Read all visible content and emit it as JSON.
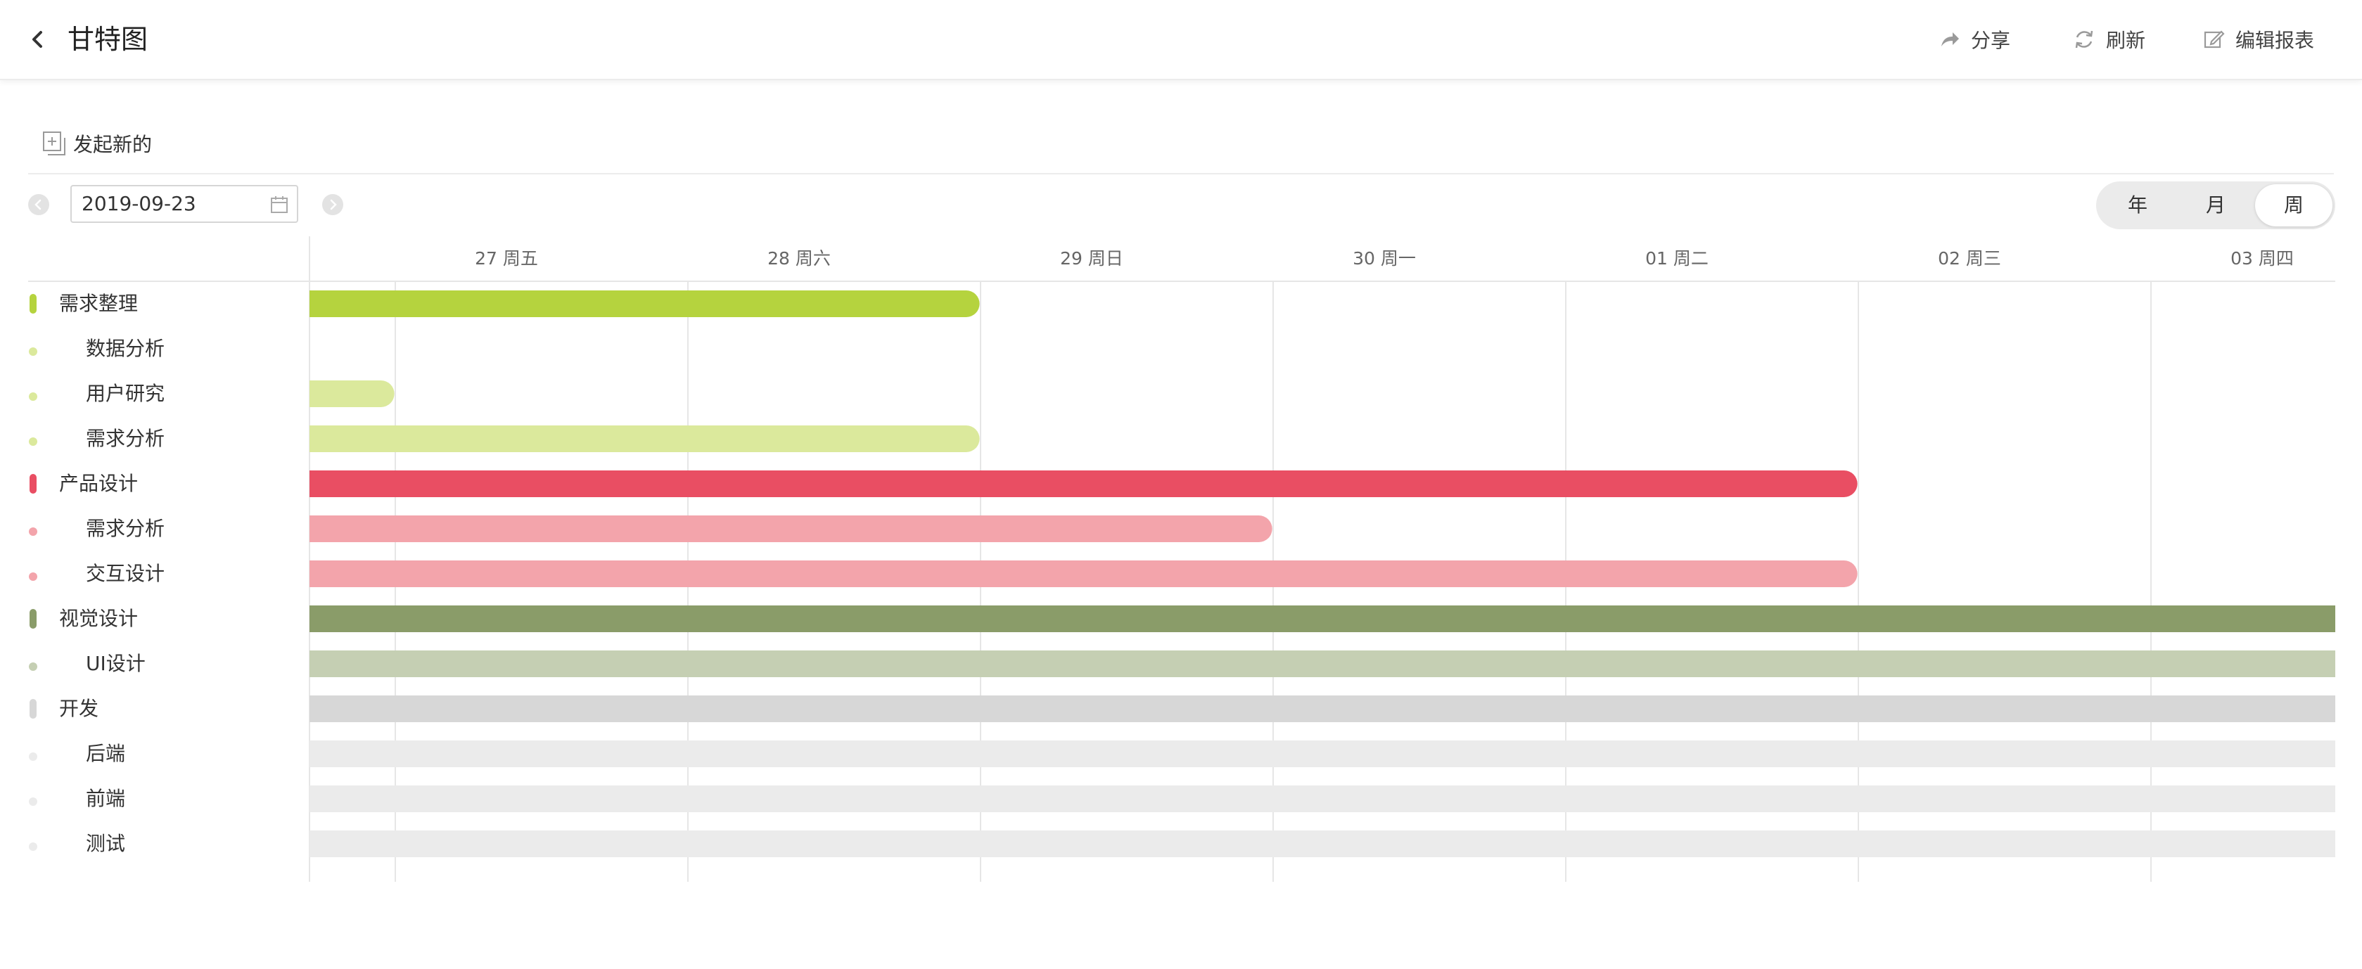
{
  "header": {
    "title": "甘特图",
    "share_label": "分享",
    "refresh_label": "刷新",
    "edit_label": "编辑报表"
  },
  "toolbar": {
    "new_label": "发起新的",
    "date_value": "2019-09-23",
    "view_options": [
      "年",
      "月",
      "周"
    ],
    "active_view": "周"
  },
  "timeline": {
    "days": [
      "27 周五",
      "28 周六",
      "29 周日",
      "30 周一",
      "01 周二",
      "02 周三",
      "03 周四"
    ]
  },
  "tasks": [
    {
      "label": "需求整理",
      "level": 0,
      "color": "#b5d33e",
      "start": 0,
      "end": 2.29
    },
    {
      "label": "数据分析",
      "level": 1,
      "color": "#dbe99c",
      "start": null,
      "end": null
    },
    {
      "label": "用户研究",
      "level": 1,
      "color": "#dbe99c",
      "start": 0,
      "end": 0.29
    },
    {
      "label": "需求分析",
      "level": 1,
      "color": "#dbe99c",
      "start": 0,
      "end": 2.29
    },
    {
      "label": "产品设计",
      "level": 0,
      "color": "#e94e63",
      "start": 0,
      "end": 5.29
    },
    {
      "label": "需求分析",
      "level": 1,
      "color": "#f3a4ab",
      "start": 0,
      "end": 3.29
    },
    {
      "label": "交互设计",
      "level": 1,
      "color": "#f3a4ab",
      "start": 0,
      "end": 5.29
    },
    {
      "label": "视觉设计",
      "level": 0,
      "color": "#8a9c69",
      "start": 0,
      "end": 7.0
    },
    {
      "label": "UI设计",
      "level": 1,
      "color": "#c5cfb3",
      "start": 0,
      "end": 7.0
    },
    {
      "label": "开发",
      "level": 0,
      "color": "#d7d7d7",
      "start": 0,
      "end": 7.0
    },
    {
      "label": "后端",
      "level": 1,
      "color": "#ebebeb",
      "start": 0,
      "end": 7.0
    },
    {
      "label": "前端",
      "level": 1,
      "color": "#ebebeb",
      "start": 0,
      "end": 7.0
    },
    {
      "label": "测试",
      "level": 1,
      "color": "#ebebeb",
      "start": 0,
      "end": 7.0
    }
  ]
}
